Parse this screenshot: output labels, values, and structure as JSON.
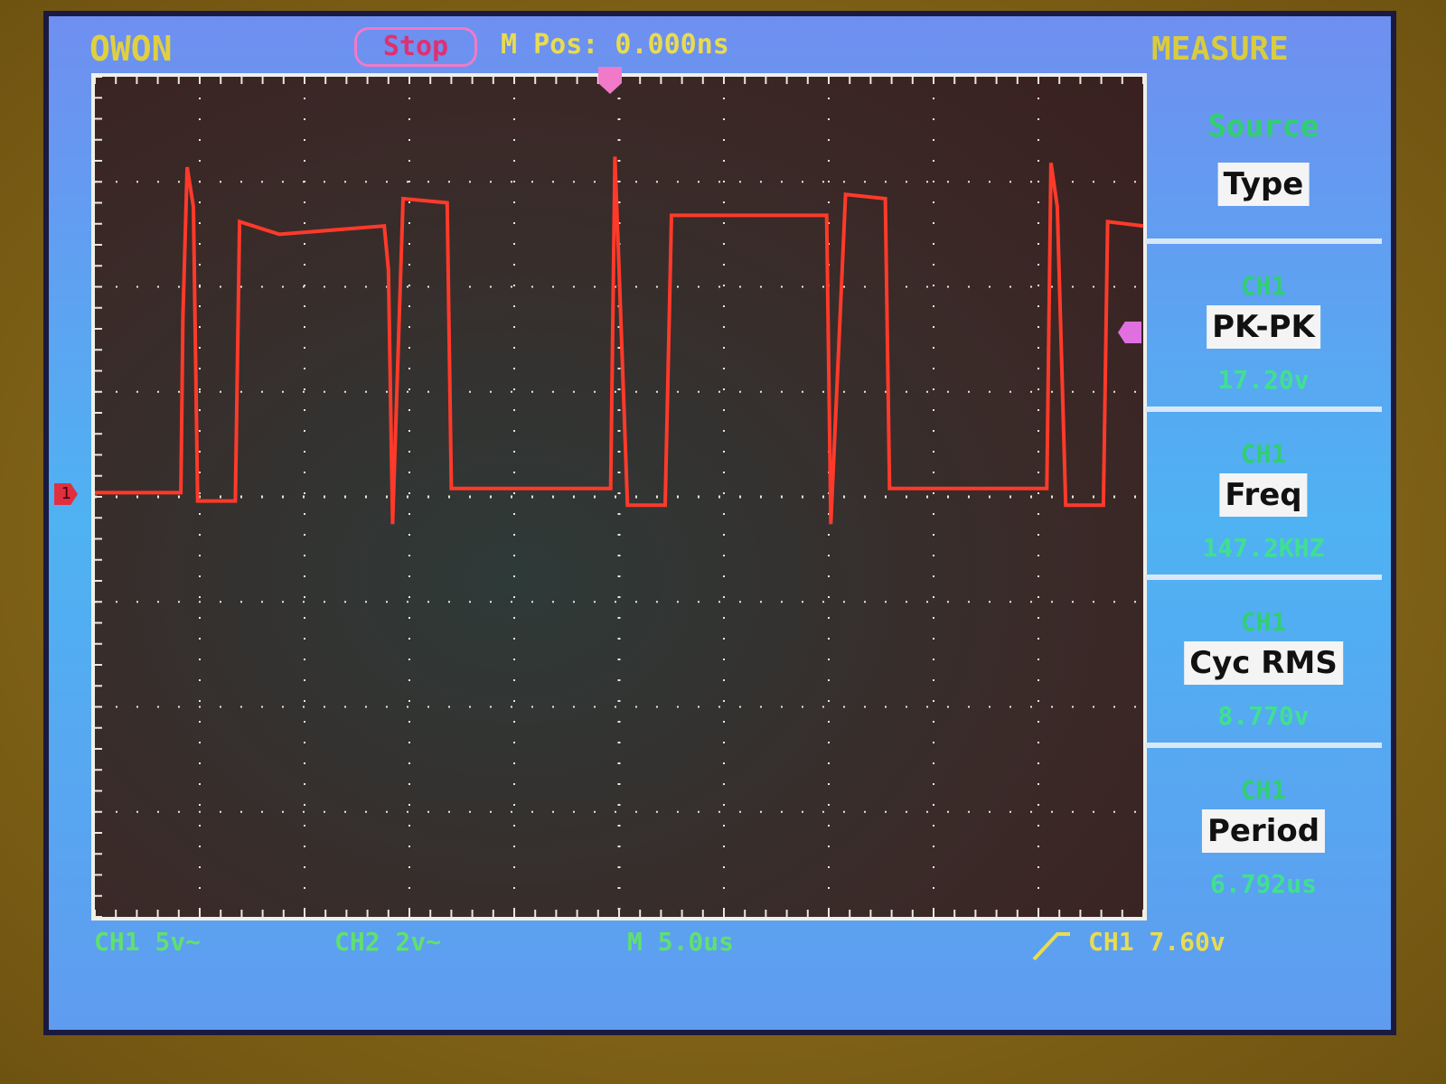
{
  "header": {
    "brand": "OWON",
    "run_state": "Stop",
    "m_pos": "M Pos: 0.000ns",
    "menu_title": "MEASURE"
  },
  "measure_panel": [
    {
      "label": "Source",
      "button": "Type",
      "value": ""
    },
    {
      "label": "CH1",
      "button": "PK-PK",
      "value": "17.20v"
    },
    {
      "label": "CH1",
      "button": "Freq",
      "value": "147.2KHZ"
    },
    {
      "label": "CH1",
      "button": "Cyc RMS",
      "value": "8.770v"
    },
    {
      "label": "CH1",
      "button": "Period",
      "value": "6.792us"
    }
  ],
  "status_bar": {
    "ch1_scale": "CH1 5v~",
    "ch2_scale": "CH2 2v~",
    "timebase": "M 5.0us",
    "trigger": "CH1 7.60v",
    "trigger_edge_icon": "rising-edge-icon"
  },
  "markers": {
    "ch1_ground": "1"
  },
  "colors": {
    "trace": "#ff3a2a",
    "text_yellow": "#e0d040",
    "text_green": "#40e090",
    "screen_blue": "#5aa8f0"
  },
  "chart_data": {
    "type": "line",
    "xlabel": "",
    "ylabel": "",
    "x_unit": "us",
    "y_unit": "V",
    "xlim": [
      -25,
      25
    ],
    "ylim": [
      -20,
      20
    ],
    "x_divisions": 10,
    "y_divisions": 8,
    "grid": true,
    "series": [
      {
        "name": "CH1",
        "color": "#ff3a2a",
        "x": [
          -25.0,
          -20.9,
          -20.8,
          -20.6,
          -20.3,
          -20.1,
          -18.3,
          -18.1,
          -16.2,
          -11.2,
          -11.0,
          -10.8,
          -10.3,
          -8.2,
          -8.0,
          -0.4,
          -0.2,
          0.0,
          0.4,
          2.2,
          2.5,
          9.9,
          10.1,
          10.8,
          12.7,
          12.9,
          20.4,
          20.6,
          20.9,
          21.3,
          23.1,
          23.3,
          25.0
        ],
        "y": [
          0.2,
          0.2,
          8.6,
          15.7,
          13.8,
          -0.2,
          -0.2,
          13.1,
          12.5,
          12.9,
          10.8,
          -1.3,
          14.2,
          14.0,
          0.4,
          0.4,
          16.2,
          10.8,
          -0.4,
          -0.4,
          13.4,
          13.4,
          -1.3,
          14.4,
          14.2,
          0.4,
          0.4,
          15.9,
          13.8,
          -0.4,
          -0.4,
          13.1,
          12.9
        ]
      }
    ]
  }
}
